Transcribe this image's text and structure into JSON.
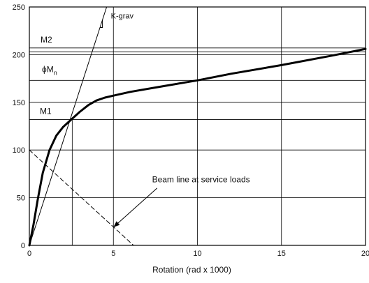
{
  "chart_data": {
    "type": "line",
    "title": "",
    "xlabel": "Rotation (rad x 1000)",
    "ylabel": "",
    "xlim": [
      0,
      20
    ],
    "ylim": [
      0,
      250
    ],
    "xticks": [
      0,
      5,
      10,
      15,
      20
    ],
    "yticks": [
      0,
      50,
      100,
      150,
      200,
      250
    ],
    "grid": true,
    "series": [
      {
        "name": "",
        "style": "thick-solid",
        "x": [
          0,
          0.25,
          0.5,
          0.8,
          1.2,
          1.6,
          2.0,
          2.5,
          3.0,
          3.5,
          4.0,
          4.5,
          5.0,
          6.0,
          8.0,
          10.0,
          12.0,
          15.0,
          18.0,
          20.0
        ],
        "y": [
          0,
          22,
          48,
          76,
          100,
          115,
          124,
          132,
          140,
          147,
          152,
          155,
          157,
          161,
          167,
          173,
          180,
          189,
          199,
          206
        ]
      },
      {
        "name": "",
        "style": "thin-solid",
        "x": [
          0,
          4.6
        ],
        "y": [
          0,
          250
        ]
      },
      {
        "name": "",
        "style": "dashed",
        "x": [
          0,
          6.2
        ],
        "y": [
          100,
          0
        ]
      }
    ],
    "reference_lines": [
      {
        "label": "M2",
        "y": 207
      },
      {
        "label": "",
        "y": 203
      },
      {
        "label": "ϕM",
        "subscript": "n",
        "y": 173
      },
      {
        "label": "M1",
        "y": 132
      }
    ],
    "vertical_marker": {
      "x": 2.55,
      "y_top": 132
    },
    "annotations": {
      "kgrav": "K-grav",
      "beam_line": "Beam line at service loads"
    },
    "line_color": "#000000",
    "grid_color": "#000000"
  }
}
